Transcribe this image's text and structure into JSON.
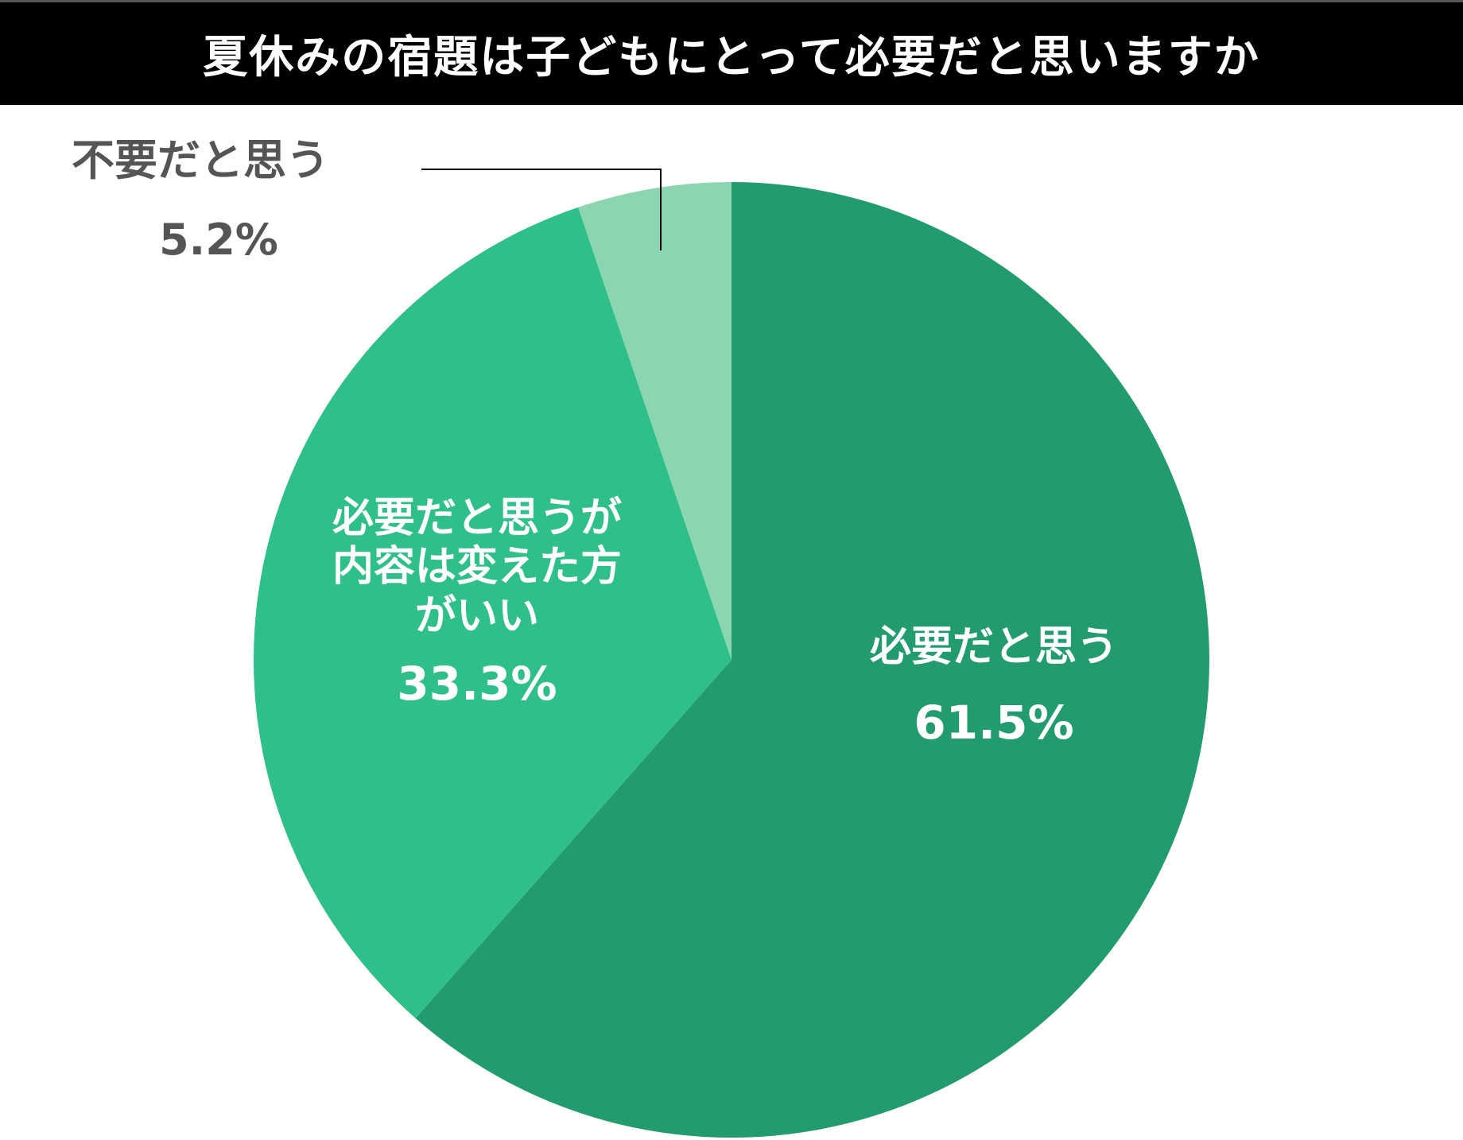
{
  "header": {
    "title": "夏休みの宿題は子どもにとって必要だと思いますか"
  },
  "colors": {
    "title_bg": "#000000",
    "title_text": "#ffffff",
    "slice_necessary": "#229c6e",
    "slice_change_content": "#2fbf89",
    "slice_unnecessary": "#8bd6b0",
    "outside_label": "#555555",
    "leader_line": "#000000"
  },
  "labels": {
    "necessary": {
      "name": "必要だと思う",
      "pct": "61.5%"
    },
    "change_content": {
      "name_line1": "必要だと思うが",
      "name_line2": "内容は変えた方",
      "name_line3": "がいい",
      "pct": "33.3%"
    },
    "unnecessary": {
      "name": "不要だと思う",
      "pct": "5.2%"
    }
  },
  "chart_data": {
    "type": "pie",
    "title": "夏休みの宿題は子どもにとって必要だと思いますか",
    "categories": [
      "必要だと思う",
      "必要だと思うが内容は変えた方がいい",
      "不要だと思う"
    ],
    "values": [
      61.5,
      33.3,
      5.2
    ],
    "unit": "%",
    "start_angle": "12 o'clock",
    "direction": "clockwise",
    "colors": [
      "#229c6e",
      "#2fbf89",
      "#8bd6b0"
    ],
    "data_labels": [
      "必要だと思う 61.5%",
      "必要だと思うが内容は変えた方がいい 33.3%",
      "不要だと思う 5.2%"
    ],
    "legend": "none (inline labels; 5.2% label outside with leader line)"
  }
}
